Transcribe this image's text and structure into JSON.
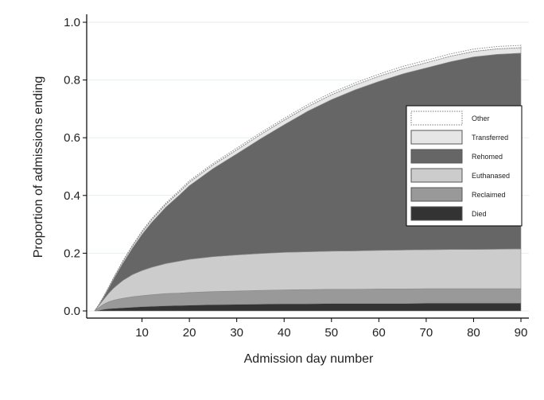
{
  "chart_data": {
    "type": "area",
    "stacked": true,
    "xlabel": "Admission day number",
    "ylabel": "Proportion of admissions ending",
    "xlim": [
      0,
      90
    ],
    "ylim": [
      0,
      1.0
    ],
    "x_ticks": [
      10,
      20,
      30,
      40,
      50,
      60,
      70,
      80,
      90
    ],
    "y_ticks": [
      0.0,
      0.2,
      0.4,
      0.6,
      0.8,
      1.0
    ],
    "y_tick_labels": [
      "0.0",
      "0.2",
      "0.4",
      "0.6",
      "0.8",
      "1.0"
    ],
    "grid": "horizontal",
    "legend_position": "right",
    "x": [
      0,
      1,
      2,
      3,
      4,
      5,
      6,
      8,
      10,
      12,
      15,
      18,
      20,
      25,
      30,
      35,
      40,
      45,
      50,
      55,
      60,
      65,
      70,
      75,
      80,
      85,
      90
    ],
    "series": [
      {
        "name": "Died",
        "color": "#333333",
        "values": [
          0.0,
          0.003,
          0.006,
          0.008,
          0.009,
          0.01,
          0.011,
          0.013,
          0.015,
          0.016,
          0.018,
          0.019,
          0.02,
          0.022,
          0.023,
          0.024,
          0.025,
          0.025,
          0.026,
          0.026,
          0.026,
          0.026,
          0.027,
          0.027,
          0.027,
          0.027,
          0.027
        ]
      },
      {
        "name": "Reclaimed",
        "color": "#999999",
        "values": [
          0.0,
          0.01,
          0.018,
          0.024,
          0.028,
          0.031,
          0.033,
          0.036,
          0.038,
          0.04,
          0.042,
          0.043,
          0.044,
          0.045,
          0.046,
          0.047,
          0.048,
          0.049,
          0.049,
          0.049,
          0.05,
          0.05,
          0.05,
          0.05,
          0.05,
          0.05,
          0.05
        ]
      },
      {
        "name": "Euthanased",
        "color": "#cccccc",
        "values": [
          0.0,
          0.008,
          0.018,
          0.03,
          0.042,
          0.052,
          0.062,
          0.077,
          0.087,
          0.095,
          0.104,
          0.111,
          0.115,
          0.121,
          0.125,
          0.128,
          0.13,
          0.131,
          0.132,
          0.133,
          0.134,
          0.135,
          0.135,
          0.136,
          0.136,
          0.137,
          0.138
        ]
      },
      {
        "name": "Rehomed",
        "color": "#666666",
        "values": [
          0.0,
          0.002,
          0.008,
          0.017,
          0.03,
          0.045,
          0.06,
          0.092,
          0.125,
          0.155,
          0.195,
          0.23,
          0.255,
          0.305,
          0.35,
          0.397,
          0.442,
          0.487,
          0.525,
          0.558,
          0.585,
          0.61,
          0.63,
          0.65,
          0.667,
          0.675,
          0.678
        ]
      },
      {
        "name": "Transferred",
        "color": "#e6e6e6",
        "values": [
          0.0,
          0.001,
          0.002,
          0.003,
          0.004,
          0.005,
          0.006,
          0.007,
          0.008,
          0.009,
          0.01,
          0.011,
          0.012,
          0.013,
          0.014,
          0.015,
          0.016,
          0.016,
          0.017,
          0.017,
          0.018,
          0.018,
          0.018,
          0.019,
          0.019,
          0.019,
          0.019
        ]
      },
      {
        "name": "Other",
        "color": "#ffffff",
        "outline": "dotted",
        "values": [
          0.0,
          0.001,
          0.001,
          0.002,
          0.002,
          0.002,
          0.003,
          0.003,
          0.004,
          0.004,
          0.004,
          0.005,
          0.005,
          0.005,
          0.006,
          0.006,
          0.006,
          0.007,
          0.007,
          0.007,
          0.007,
          0.008,
          0.008,
          0.008,
          0.008,
          0.008,
          0.008
        ]
      }
    ],
    "legend_order": [
      "Other",
      "Transferred",
      "Rehomed",
      "Euthanased",
      "Reclaimed",
      "Died"
    ]
  }
}
